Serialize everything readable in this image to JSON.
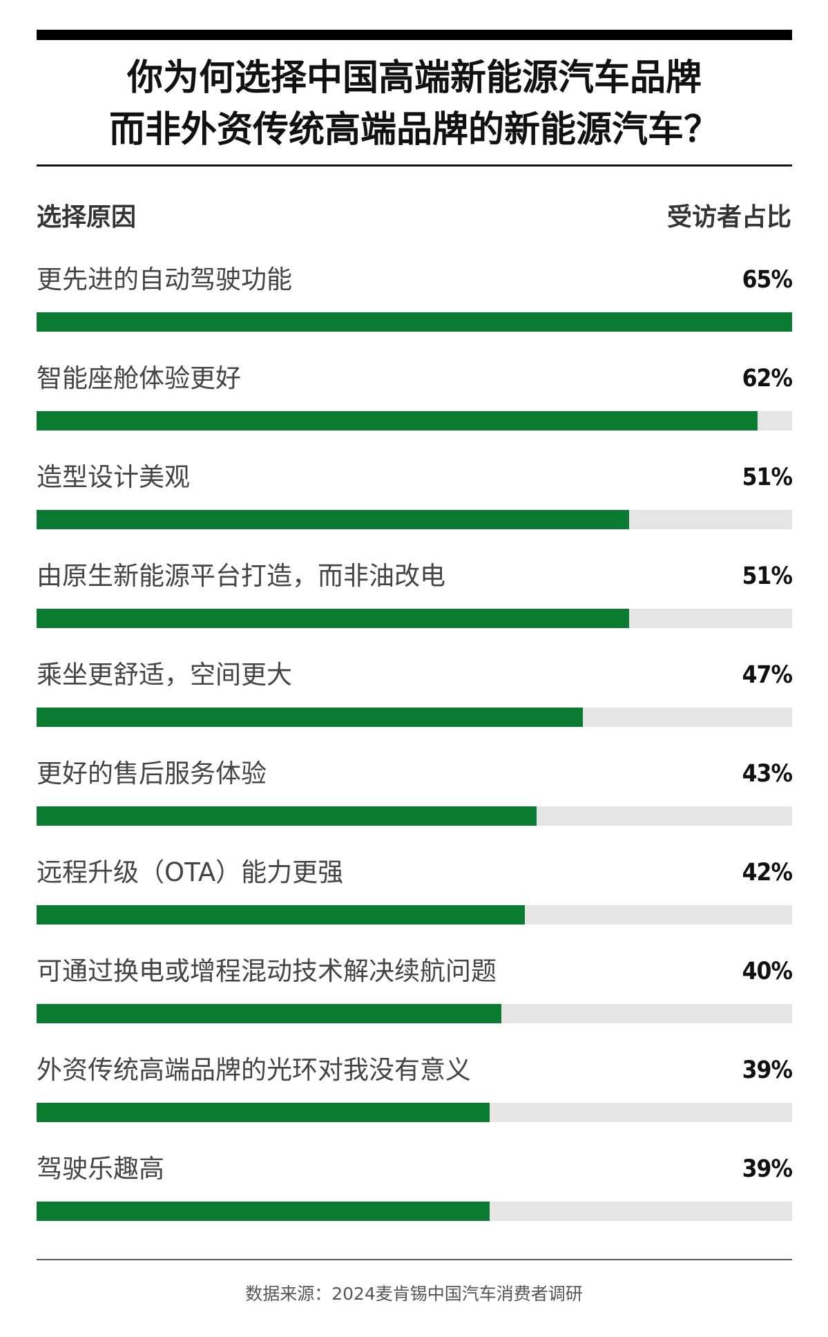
{
  "title_lines": [
    "你为何选择中国高端新能源汽车品牌",
    "而非外资传统高端品牌的新能源汽车？"
  ],
  "columns": {
    "left": "选择原因",
    "right": "受访者占比"
  },
  "source": "数据来源：2024麦肯锡中国汽车消费者调研",
  "colors": {
    "bar": "#0b7b32",
    "track": "#e5e5e5"
  },
  "chart_data": {
    "type": "bar",
    "orientation": "horizontal",
    "title": "你为何选择中国高端新能源汽车品牌而非外资传统高端品牌的新能源汽车？",
    "xlabel": "受访者占比",
    "ylabel": "选择原因",
    "xlim": [
      0,
      65
    ],
    "categories": [
      "更先进的自动驾驶功能",
      "智能座舱体验更好",
      "造型设计美观",
      "由原生新能源平台打造，而非油改电",
      "乘坐更舒适，空间更大",
      "更好的售后服务体验",
      "远程升级（OTA）能力更强",
      "可通过换电或增程混动技术解决续航问题",
      "外资传统高端品牌的光环对我没有意义",
      "驾驶乐趣高"
    ],
    "values": [
      65,
      62,
      51,
      51,
      47,
      43,
      42,
      40,
      39,
      39
    ],
    "value_labels": [
      "65%",
      "62%",
      "51%",
      "51%",
      "47%",
      "43%",
      "42%",
      "40%",
      "39%",
      "39%"
    ],
    "grid": false,
    "legend": "none"
  }
}
